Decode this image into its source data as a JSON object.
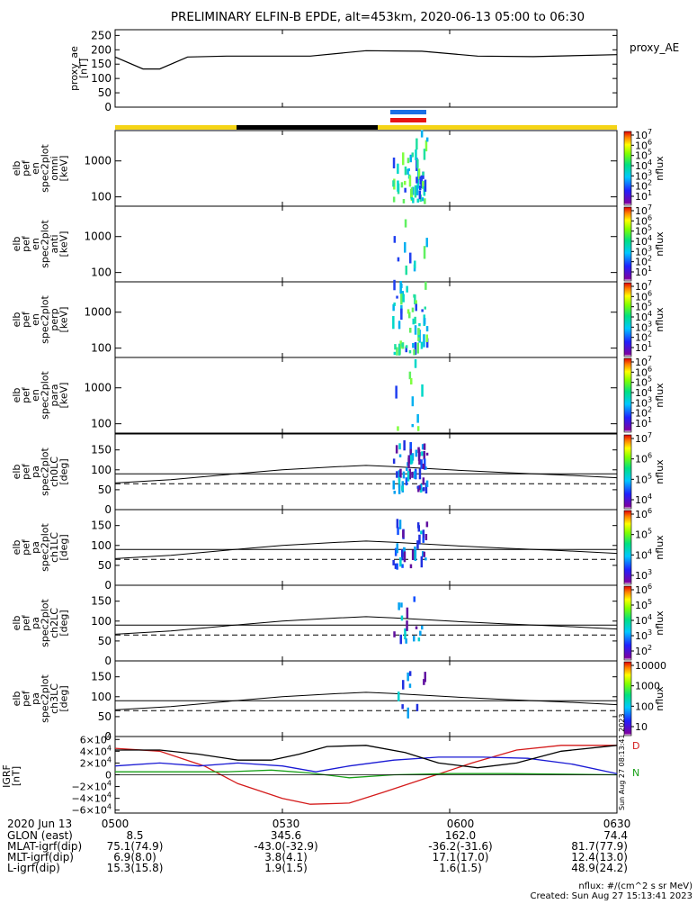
{
  "title": "PRELIMINARY ELFIN-B EPDE, alt=453km, 2020-06-13 05:00 to 06:30",
  "created": "Created: Sun Aug 27 15:13:41 2023",
  "flux_units": "nflux: #/(cm^2 s sr MeV)",
  "side_stamp": "Sun Aug 27 08:13:41 2023",
  "colorbar_label": "nflux",
  "colors": {
    "yellow": "#f5d416",
    "black": "#000000",
    "blue_bar": "#1a6fe6",
    "red_bar": "#e81414"
  },
  "chart_data": [
    {
      "type": "line",
      "panel": "proxy_ae",
      "ylabel": "proxy_ae\n[nT]",
      "legend": "proxy_AE",
      "yticks": [
        "250",
        "200",
        "150",
        "100",
        "50",
        "0"
      ],
      "ylim": [
        0,
        270
      ],
      "x_minutes": [
        0,
        5,
        8,
        13,
        20,
        35,
        45,
        55,
        65,
        75,
        90
      ],
      "values": [
        175,
        133,
        133,
        175,
        178,
        178,
        197,
        195,
        178,
        176,
        183
      ]
    },
    {
      "type": "heatmap",
      "panel": "elb_pef_en_spec2plot_omni",
      "ylabel": "elb\npef\nen\nspec2plot\nomni\n[keV]",
      "yticks": [
        "1000",
        "100"
      ],
      "colorbar_ticks": [
        "10^7",
        "10^6",
        "10^5",
        "10^4",
        "10^3",
        "10^2",
        "10^1"
      ]
    },
    {
      "type": "heatmap",
      "panel": "elb_pef_en_spec2plot_anti",
      "ylabel": "elb\npef\nen\nspec2plot\nanti\n[keV]",
      "yticks": [
        "1000",
        "100"
      ],
      "colorbar_ticks": [
        "10^7",
        "10^6",
        "10^5",
        "10^4",
        "10^3",
        "10^2",
        "10^1"
      ]
    },
    {
      "type": "heatmap",
      "panel": "elb_pef_en_spec2plot_perp",
      "ylabel": "elb\npef\nen\nspec2plot\nperp\n[keV]",
      "yticks": [
        "1000",
        "100"
      ],
      "colorbar_ticks": [
        "10^7",
        "10^6",
        "10^5",
        "10^4",
        "10^3",
        "10^2",
        "10^1"
      ]
    },
    {
      "type": "heatmap",
      "panel": "elb_pef_en_spec2plot_para",
      "ylabel": "elb\npef\nen\nspec2plot\npara\n[keV]",
      "yticks": [
        "1000",
        "100"
      ],
      "colorbar_ticks": [
        "10^7",
        "10^6",
        "10^5",
        "10^4",
        "10^3",
        "10^2",
        "10^1"
      ]
    },
    {
      "type": "heatmap",
      "panel": "elb_pef_pa_spec2plot_ch0LC",
      "ylabel": "elb\npef\npa\nspec2plot\nch0LC\n[deg]",
      "yticks": [
        "150",
        "100",
        "50",
        "0"
      ],
      "colorbar_ticks": [
        "10^7",
        "10^6",
        "10^5",
        "10^4"
      ]
    },
    {
      "type": "heatmap",
      "panel": "elb_pef_pa_spec2plot_ch1LC",
      "ylabel": "elb\npef\npa\nspec2plot\nch1LC\n[deg]",
      "yticks": [
        "150",
        "100",
        "50",
        "0"
      ],
      "colorbar_ticks": [
        "10^6",
        "10^5",
        "10^4",
        "10^3"
      ]
    },
    {
      "type": "heatmap",
      "panel": "elb_pef_pa_spec2plot_ch2LC",
      "ylabel": "elb\npef\npa\nspec2plot\nch2LC\n[deg]",
      "yticks": [
        "150",
        "100",
        "50",
        "0"
      ],
      "colorbar_ticks": [
        "10^6",
        "10^5",
        "10^4",
        "10^3",
        "10^2"
      ]
    },
    {
      "type": "heatmap",
      "panel": "elb_pef_pa_spec2plot_ch3LC",
      "ylabel": "elb\npef\npa\nspec2plot\nch3LC\n[deg]",
      "yticks": [
        "150",
        "100",
        "50",
        "0"
      ],
      "colorbar_ticks": [
        "10000",
        "1000",
        "100",
        "10"
      ]
    },
    {
      "type": "line",
      "panel": "igrf",
      "ylabel": "IGRF\n[nT]",
      "yticks": [
        "6×10^4",
        "4×10^4",
        "2×10^4",
        "0",
        "−2×10^4",
        "−4×10^4",
        "−6×10^4"
      ],
      "ylim": [
        -65000,
        65000
      ],
      "series": [
        {
          "name": "D",
          "color": "#d41a1a",
          "x": [
            0,
            8,
            16,
            22,
            30,
            35,
            42,
            48,
            56,
            64,
            72,
            80,
            90
          ],
          "values": [
            45000,
            40000,
            15000,
            -15000,
            -40000,
            -50000,
            -48000,
            -30000,
            -5000,
            20000,
            42000,
            50000,
            50000
          ]
        },
        {
          "name": "N",
          "color": "#18a018",
          "x": [
            0,
            10,
            20,
            28,
            35,
            42,
            50,
            60,
            70,
            80,
            90
          ],
          "values": [
            5000,
            5000,
            5000,
            8000,
            3000,
            -5000,
            0,
            2000,
            2000,
            1000,
            0
          ]
        },
        {
          "color": "#1a1ad4",
          "x": [
            0,
            8,
            15,
            22,
            30,
            36,
            42,
            50,
            58,
            66,
            74,
            82,
            90
          ],
          "values": [
            15000,
            20000,
            15000,
            20000,
            15000,
            5000,
            15000,
            25000,
            30000,
            30000,
            28000,
            18000,
            2000
          ]
        },
        {
          "color": "#000000",
          "x": [
            0,
            8,
            15,
            22,
            28,
            33,
            38,
            45,
            52,
            58,
            65,
            72,
            80,
            90
          ],
          "values": [
            42000,
            42000,
            35000,
            25000,
            25000,
            35000,
            48000,
            50000,
            38000,
            20000,
            12000,
            20000,
            40000,
            50000
          ]
        }
      ]
    }
  ],
  "footer": {
    "date": "2020 Jun 13",
    "rows": [
      {
        "label": "GLON (east)",
        "vals": [
          "8.5",
          "345.6",
          "162.0",
          "74.4"
        ]
      },
      {
        "label": "MLAT-igrf(dip)",
        "vals": [
          "75.1(74.9)",
          "-43.0(-32.9)",
          "-36.2(-31.6)",
          "81.7(77.9)"
        ]
      },
      {
        "label": "MLT-igrf(dip)",
        "vals": [
          "6.9(8.0)",
          "3.8(4.1)",
          "17.1(17.0)",
          "12.4(13.0)"
        ]
      },
      {
        "label": "L-igrf(dip)",
        "vals": [
          "15.3(15.8)",
          "1.9(1.5)",
          "1.6(1.5)",
          "48.9(24.2)"
        ]
      }
    ],
    "times": [
      "0500",
      "0530",
      "0600",
      "0630"
    ]
  }
}
